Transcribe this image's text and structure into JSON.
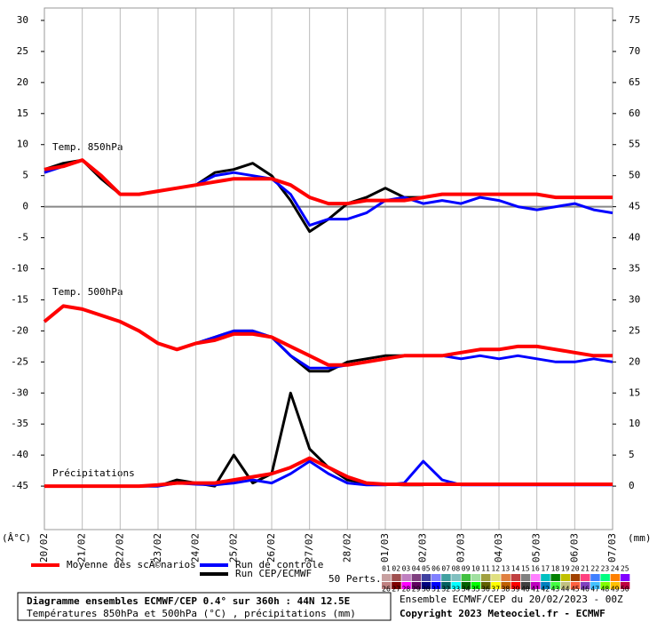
{
  "chart_data": {
    "type": "line",
    "x": [
      0,
      0.5,
      1,
      1.5,
      2,
      2.5,
      3,
      3.5,
      4,
      4.5,
      5,
      5.5,
      6,
      6.5,
      7,
      7.5,
      8,
      8.5,
      9,
      9.5,
      10,
      10.5,
      11,
      11.5,
      12,
      12.5,
      13,
      13.5,
      14,
      14.5,
      15
    ],
    "xlim": [
      0,
      15
    ],
    "xticks": [
      {
        "value": 0,
        "label": "20/02"
      },
      {
        "value": 1,
        "label": "21/02"
      },
      {
        "value": 2,
        "label": "22/02"
      },
      {
        "value": 3,
        "label": "23/02"
      },
      {
        "value": 4,
        "label": "24/02"
      },
      {
        "value": 5,
        "label": "25/02"
      },
      {
        "value": 6,
        "label": "26/02"
      },
      {
        "value": 7,
        "label": "27/02"
      },
      {
        "value": 8,
        "label": "28/02"
      },
      {
        "value": 9,
        "label": "01/03"
      },
      {
        "value": 10,
        "label": "02/03"
      },
      {
        "value": 11,
        "label": "03/03"
      },
      {
        "value": 12,
        "label": "04/03"
      },
      {
        "value": 13,
        "label": "05/03"
      },
      {
        "value": 14,
        "label": "06/03"
      },
      {
        "value": 15,
        "label": "07/03"
      }
    ],
    "ylim": [
      -52,
      32
    ],
    "yticks": [
      30,
      25,
      20,
      15,
      10,
      5,
      0,
      -5,
      -10,
      -15,
      -20,
      -25,
      -30,
      -35,
      -40,
      -45
    ],
    "y2lim": [
      -7,
      77
    ],
    "y2ticks": [
      75,
      70,
      65,
      60,
      55,
      50,
      45,
      40,
      35,
      30,
      25,
      20,
      15,
      10,
      5,
      0
    ],
    "ylabel": "(Â°C)",
    "y2label": "(mm)",
    "grid": true,
    "zero_line": 0,
    "annotations": [
      "Temp. 850hPa",
      "Temp. 500hPa",
      "Précipitations"
    ],
    "series": [
      {
        "name": "Moyenne des scÃ©narios",
        "color": "#ff0000",
        "width": 4,
        "t850": [
          6,
          6.5,
          7.5,
          5,
          2,
          2,
          2.5,
          3,
          3.5,
          4,
          4.5,
          4.5,
          4.5,
          3.5,
          1.5,
          0.5,
          0.5,
          1,
          1,
          1,
          1.5,
          2,
          2,
          2,
          2,
          2,
          2,
          1.5,
          1.5,
          1.5,
          1.5
        ],
        "t500": [
          -18.5,
          -16,
          -16.5,
          -17.5,
          -18.5,
          -20,
          -22,
          -23,
          -22,
          -21.5,
          -20.5,
          -20.5,
          -21,
          -22.5,
          -24,
          -25.5,
          -25.5,
          -25,
          -24.5,
          -24,
          -24,
          -24,
          -23.5,
          -23,
          -23,
          -22.5,
          -22.5,
          -23,
          -23.5,
          -24,
          -24
        ],
        "precip": [
          0,
          0,
          0,
          0,
          0,
          0,
          0.2,
          0.5,
          0.5,
          0.5,
          1,
          1.5,
          2,
          3,
          4.5,
          3,
          1.5,
          0.5,
          0.3,
          0.3,
          0.3,
          0.3,
          0.3,
          0.3,
          0.3,
          0.3,
          0.3,
          0.3,
          0.3,
          0.3,
          0.3
        ]
      },
      {
        "name": "Run de contrôle",
        "color": "#0000ff",
        "width": 3,
        "t850": [
          5.5,
          6.5,
          7.5,
          5,
          2,
          2,
          2.5,
          3,
          3.5,
          5,
          5.5,
          5,
          4.5,
          2,
          -3,
          -2,
          -2,
          -1,
          1,
          1.5,
          0.5,
          1,
          0.5,
          1.5,
          1,
          0,
          -0.5,
          0,
          0.5,
          -0.5,
          -1
        ],
        "t500": [
          -18.5,
          -16,
          -16.5,
          -17.5,
          -18.5,
          -20,
          -22,
          -23,
          -22,
          -21,
          -20,
          -20,
          -21,
          -24,
          -26,
          -26,
          -25.5,
          -25,
          -24.5,
          -24,
          -24,
          -24,
          -24.5,
          -24,
          -24.5,
          -24,
          -24.5,
          -25,
          -25,
          -24.5,
          -25
        ],
        "precip": [
          0,
          0,
          0,
          0,
          0,
          0,
          0,
          0.5,
          0.3,
          0.2,
          0.5,
          1,
          0.5,
          2,
          4,
          2,
          0.5,
          0.2,
          0.2,
          0.5,
          4,
          1,
          0.2,
          0.2,
          0.2,
          0.2,
          0.2,
          0.2,
          0.2,
          0.2,
          0.2
        ]
      },
      {
        "name": "Run CEP/ECMWF",
        "color": "#000000",
        "width": 3,
        "t850": [
          6,
          7,
          7.5,
          4.5,
          2,
          2,
          2.5,
          3,
          3.5,
          5.5,
          6,
          7,
          5,
          1,
          -4,
          -2,
          0.5,
          1.5,
          3,
          1.5,
          1.5,
          null,
          null,
          null,
          null,
          null,
          null,
          null,
          null,
          null,
          null
        ],
        "t500": [
          -18.5,
          -16,
          -16.5,
          -17.5,
          -18.5,
          -20,
          -22,
          -23,
          -22,
          -21,
          -20,
          -20,
          -21,
          -24,
          -26.5,
          -26.5,
          -25,
          -24.5,
          -24,
          -24,
          -24,
          null,
          null,
          null,
          null,
          null,
          null,
          null,
          null,
          null,
          null
        ],
        "precip": [
          0,
          0,
          0,
          0,
          0,
          0,
          0,
          1,
          0.5,
          0,
          5,
          0.5,
          2,
          15,
          6,
          3,
          1,
          0.5,
          0.3,
          0.2,
          0.2,
          null,
          null,
          null,
          null,
          null,
          null,
          null,
          null,
          null,
          null
        ]
      }
    ],
    "perts_label": "50 Perts.",
    "perts": [
      {
        "label": "01",
        "color": "#c8a0a0"
      },
      {
        "label": "02",
        "color": "#a05050"
      },
      {
        "label": "03",
        "color": "#c080c0"
      },
      {
        "label": "04",
        "color": "#804080"
      },
      {
        "label": "05",
        "color": "#4040a0"
      },
      {
        "label": "06",
        "color": "#8080ff"
      },
      {
        "label": "07",
        "color": "#40a0a0"
      },
      {
        "label": "08",
        "color": "#80c0c0"
      },
      {
        "label": "09",
        "color": "#40c040"
      },
      {
        "label": "10",
        "color": "#a0e0a0"
      },
      {
        "label": "11",
        "color": "#a0a040"
      },
      {
        "label": "12",
        "color": "#e0e080"
      },
      {
        "label": "13",
        "color": "#e08040"
      },
      {
        "label": "14",
        "color": "#c04040"
      },
      {
        "label": "15",
        "color": "#808080"
      },
      {
        "label": "16",
        "color": "#ff80ff"
      },
      {
        "label": "17",
        "color": "#00c0c0"
      },
      {
        "label": "18",
        "color": "#008000"
      },
      {
        "label": "19",
        "color": "#c0c000"
      },
      {
        "label": "20",
        "color": "#a04000"
      },
      {
        "label": "21",
        "color": "#ff4080"
      },
      {
        "label": "22",
        "color": "#4080ff"
      },
      {
        "label": "23",
        "color": "#00ff80"
      },
      {
        "label": "24",
        "color": "#ff8000"
      },
      {
        "label": "25",
        "color": "#8000ff"
      },
      {
        "label": "26",
        "color": "#c08080"
      },
      {
        "label": "27",
        "color": "#800000"
      },
      {
        "label": "28",
        "color": "#ff00ff"
      },
      {
        "label": "29",
        "color": "#600060"
      },
      {
        "label": "30",
        "color": "#000080"
      },
      {
        "label": "31",
        "color": "#0000ff"
      },
      {
        "label": "32",
        "color": "#006060"
      },
      {
        "label": "33",
        "color": "#00ffff"
      },
      {
        "label": "34",
        "color": "#006000"
      },
      {
        "label": "35",
        "color": "#00ff00"
      },
      {
        "label": "36",
        "color": "#606000"
      },
      {
        "label": "37",
        "color": "#ffff00"
      },
      {
        "label": "38",
        "color": "#c06000"
      },
      {
        "label": "39",
        "color": "#ff0000"
      },
      {
        "label": "40",
        "color": "#404040"
      },
      {
        "label": "41",
        "color": "#c000c0"
      },
      {
        "label": "42",
        "color": "#0080c0"
      },
      {
        "label": "43",
        "color": "#40ff40"
      },
      {
        "label": "44",
        "color": "#c0c080"
      },
      {
        "label": "45",
        "color": "#ff6040"
      },
      {
        "label": "46",
        "color": "#8040c0"
      },
      {
        "label": "47",
        "color": "#40c0ff"
      },
      {
        "label": "48",
        "color": "#80ff00"
      },
      {
        "label": "49",
        "color": "#ffc000"
      },
      {
        "label": "50",
        "color": "#c00040"
      }
    ],
    "info": [
      "Diagramme ensembles ECMWF/CEP 0.4° sur 360h : 44N 12.5E",
      "Températures 850hPa et 500hPa (°C) , précipitations (mm)"
    ],
    "run_info": "Ensemble ECMWF/CEP du 20/02/2023 - 00Z",
    "copyright": "Copyright 2023 Meteociel.fr - ECMWF"
  }
}
